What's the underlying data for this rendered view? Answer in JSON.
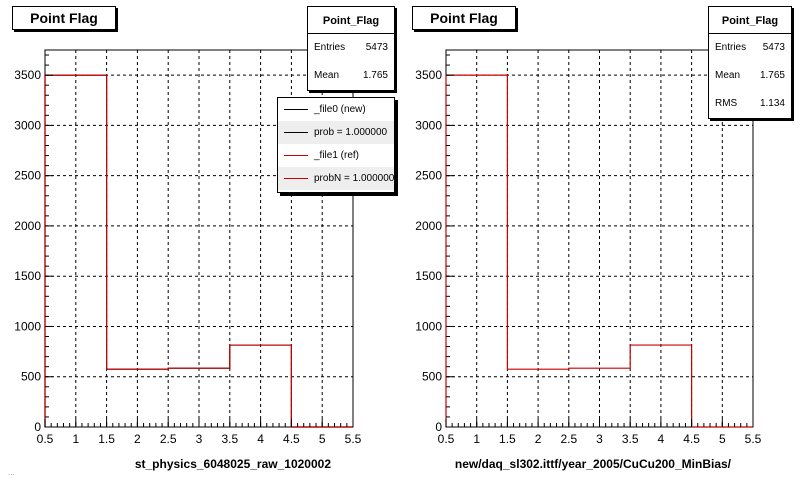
{
  "chart_data": [
    {
      "type": "bar",
      "title": "Point Flag",
      "xlabel": "st_physics_6048025_raw_1020002",
      "xlim": [
        0.5,
        5.5
      ],
      "ylim": [
        0,
        3750
      ],
      "x_ticks": [
        0.5,
        1,
        1.5,
        2,
        2.5,
        3,
        3.5,
        4,
        4.5,
        5,
        5.5
      ],
      "y_ticks": [
        0,
        500,
        1000,
        1500,
        2000,
        2500,
        3000,
        3500
      ],
      "grid": true,
      "bin_edges": [
        0.5,
        1.5,
        2.5,
        3.5,
        4.5,
        5.5
      ],
      "series": [
        {
          "name": "_file0 (new)",
          "color": "#000000",
          "values": [
            3500,
            575,
            585,
            815,
            0
          ]
        },
        {
          "name": "_file1 (ref)",
          "color": "#cc0000",
          "values": [
            3500,
            575,
            585,
            815,
            0
          ]
        }
      ],
      "stats": {
        "title": "Point_Flag",
        "rows": [
          {
            "label": "Entries",
            "value": "5473"
          },
          {
            "label": "Mean",
            "value": "1.765"
          }
        ]
      },
      "legend": {
        "placement": "top-right",
        "entries": [
          "_file0 (new)",
          "prob = 1.000000",
          "_file1 (ref)",
          "probN = 1.000000"
        ]
      }
    },
    {
      "type": "bar",
      "title": "Point Flag",
      "xlabel": "new/daq_sl302.ittf/year_2005/CuCu200_MinBias/",
      "xlim": [
        0.5,
        5.5
      ],
      "ylim": [
        0,
        3750
      ],
      "x_ticks": [
        0.5,
        1,
        1.5,
        2,
        2.5,
        3,
        3.5,
        4,
        4.5,
        5,
        5.5
      ],
      "y_ticks": [
        0,
        500,
        1000,
        1500,
        2000,
        2500,
        3000,
        3500
      ],
      "grid": true,
      "bin_edges": [
        0.5,
        1.5,
        2.5,
        3.5,
        4.5,
        5.5
      ],
      "series": [
        {
          "color": "#cc0000",
          "values": [
            3500,
            575,
            585,
            815,
            0
          ]
        }
      ],
      "stats": {
        "title": "Point_Flag",
        "rows": [
          {
            "label": "Entries",
            "value": "5473"
          },
          {
            "label": "Mean",
            "value": "1.765"
          },
          {
            "label": "RMS",
            "value": "1.134"
          }
        ]
      }
    }
  ],
  "footer_text": "..."
}
